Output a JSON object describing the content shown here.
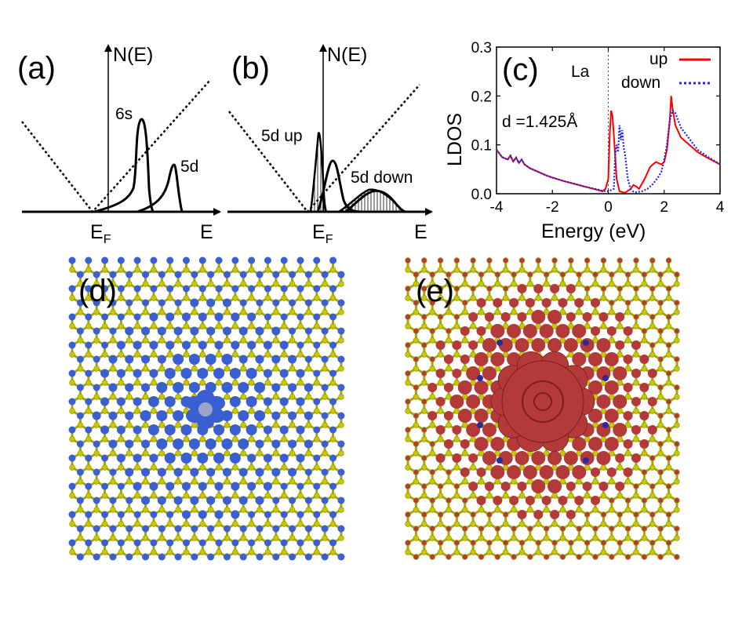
{
  "panels": {
    "a": {
      "label": "(a)",
      "y_axis_label": "N(E)",
      "x_axis_label": "E",
      "fermi_label_main": "E",
      "fermi_label_sub": "F",
      "peak_6s_label": "6s",
      "peak_5d_label": "5d"
    },
    "b": {
      "label": "(b)",
      "y_axis_label": "N(E)",
      "x_axis_label": "E",
      "fermi_label_main": "E",
      "fermi_label_sub": "F",
      "up_label": "5d up",
      "down_label": "5d down"
    },
    "c": {
      "label": "(c)",
      "element_label": "La",
      "distance_label": "d =1.425Å",
      "legend_up": "up",
      "legend_down": "down",
      "up_color": "#ff0000",
      "down_color": "#2222ee"
    },
    "d": {
      "label": "(d)",
      "lobe_color": "#3a5fd0",
      "lattice_color": "#c8c800"
    },
    "e": {
      "label": "(e)",
      "lobe_color": "#b43a3a",
      "minor_color": "#2a2a9a",
      "lattice_color": "#c8c800"
    }
  },
  "chart_data": {
    "type": "line",
    "title": "",
    "xlabel": "Energy (eV)",
    "ylabel": "LDOS",
    "xlim": [
      -4,
      4
    ],
    "ylim": [
      0,
      0.3
    ],
    "xticks": [
      -4,
      -2,
      0,
      2,
      4
    ],
    "xtick_labels": [
      "-4",
      "-2",
      "0",
      "2",
      "4"
    ],
    "yticks": [
      0.0,
      0.1,
      0.2,
      0.3
    ],
    "ytick_labels": [
      "0.0",
      "0.1",
      "0.2",
      "0.3"
    ],
    "fermi_line_x": 0,
    "series": [
      {
        "name": "up",
        "style": "solid",
        "x": [
          -4.0,
          -3.8,
          -3.6,
          -3.5,
          -3.4,
          -3.3,
          -3.2,
          -3.1,
          -3.0,
          -2.8,
          -2.6,
          -2.4,
          -2.2,
          -2.0,
          -1.6,
          -1.2,
          -0.8,
          -0.4,
          -0.2,
          -0.1,
          0.0,
          0.05,
          0.1,
          0.15,
          0.2,
          0.3,
          0.4,
          0.6,
          0.8,
          0.9,
          1.0,
          1.1,
          1.3,
          1.5,
          1.7,
          1.9,
          2.0,
          2.1,
          2.2,
          2.25,
          2.3,
          2.4,
          2.6,
          2.8,
          3.0,
          3.2,
          3.5,
          4.0
        ],
        "y": [
          0.09,
          0.075,
          0.07,
          0.078,
          0.066,
          0.074,
          0.063,
          0.07,
          0.06,
          0.052,
          0.047,
          0.042,
          0.037,
          0.033,
          0.026,
          0.02,
          0.014,
          0.008,
          0.005,
          0.01,
          0.03,
          0.12,
          0.17,
          0.16,
          0.12,
          0.03,
          0.005,
          0.002,
          0.01,
          0.018,
          0.015,
          0.01,
          0.03,
          0.055,
          0.065,
          0.06,
          0.065,
          0.09,
          0.15,
          0.2,
          0.175,
          0.14,
          0.115,
          0.105,
          0.095,
          0.085,
          0.075,
          0.06
        ]
      },
      {
        "name": "down",
        "style": "dotted",
        "x": [
          -4.0,
          -3.8,
          -3.6,
          -3.5,
          -3.4,
          -3.3,
          -3.2,
          -3.1,
          -3.0,
          -2.8,
          -2.6,
          -2.4,
          -2.2,
          -2.0,
          -1.6,
          -1.2,
          -0.8,
          -0.4,
          -0.2,
          0.0,
          0.2,
          0.25,
          0.3,
          0.35,
          0.4,
          0.45,
          0.5,
          0.55,
          0.6,
          0.7,
          0.8,
          0.9,
          1.0,
          1.2,
          1.4,
          1.6,
          1.8,
          1.9,
          2.0,
          2.1,
          2.2,
          2.3,
          2.4,
          2.6,
          2.8,
          3.0,
          3.2,
          3.5,
          4.0
        ],
        "y": [
          0.09,
          0.075,
          0.07,
          0.078,
          0.066,
          0.074,
          0.063,
          0.07,
          0.06,
          0.052,
          0.047,
          0.042,
          0.037,
          0.033,
          0.026,
          0.02,
          0.014,
          0.009,
          0.006,
          0.005,
          0.01,
          0.08,
          0.1,
          0.085,
          0.14,
          0.11,
          0.13,
          0.095,
          0.08,
          0.03,
          0.01,
          0.004,
          0.003,
          0.005,
          0.01,
          0.02,
          0.035,
          0.045,
          0.07,
          0.1,
          0.15,
          0.17,
          0.165,
          0.135,
          0.12,
          0.105,
          0.09,
          0.078,
          0.06
        ]
      }
    ]
  }
}
